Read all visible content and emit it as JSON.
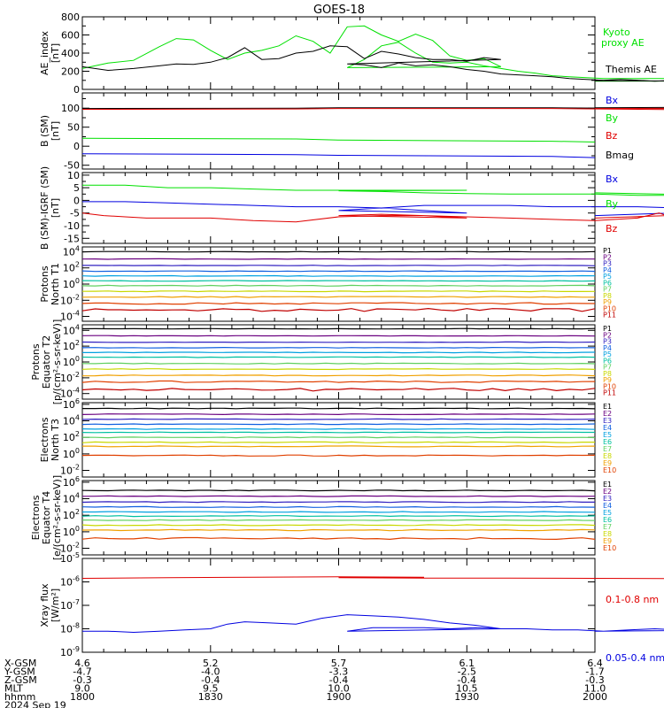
{
  "title": "GOES-18",
  "colors": {
    "axis": "#000000",
    "green": "#00e000",
    "blue": "#0000e0",
    "red": "#e00000",
    "black": "#000000"
  },
  "palette": {
    "protons": [
      "#000000",
      "#6a0080",
      "#3020c0",
      "#1060e0",
      "#00a0e0",
      "#00c0a0",
      "#60d060",
      "#c8d800",
      "#f0a000",
      "#e04000",
      "#c00000"
    ],
    "electrons": [
      "#000000",
      "#6a0080",
      "#3020c0",
      "#1060e0",
      "#00a0e0",
      "#00c0a0",
      "#60d060",
      "#c8d800",
      "#f0a000",
      "#e04000"
    ]
  },
  "chart_data": [
    {
      "type": "line",
      "id": "ae",
      "ylabel": [
        "AE_index",
        "[nT]"
      ],
      "scale": "linear",
      "ylim": [
        0,
        800
      ],
      "yticks": [
        0,
        200,
        400,
        600,
        800
      ],
      "series": [
        {
          "name": "Kyoto proxy AE",
          "color": "green",
          "x": [
            1800,
            1806,
            1812,
            1818,
            1822,
            1826,
            1830,
            1834,
            1838,
            1842,
            1846,
            1850,
            1854,
            1858,
            1862,
            1866,
            1870,
            1874,
            1878,
            1882,
            1886,
            1890,
            1894,
            1898,
            1902,
            1906,
            1910,
            1914,
            1918,
            1922,
            1926,
            1930,
            1934,
            1938,
            1942,
            1946,
            1950,
            1954,
            1958,
            1962,
            1966,
            1970,
            1974,
            1978,
            1982,
            1986,
            1990,
            1994,
            1998,
            2000
          ],
          "y": [
            230,
            290,
            320,
            470,
            560,
            545,
            430,
            330,
            400,
            430,
            480,
            590,
            530,
            400,
            690,
            700,
            600,
            530,
            610,
            540,
            370,
            320,
            340,
            250,
            240,
            330,
            480,
            520,
            400,
            300,
            290,
            300,
            260,
            230,
            200,
            180,
            150,
            140,
            130,
            120,
            120,
            120,
            120,
            120,
            120,
            110,
            100,
            100,
            95,
            90
          ]
        },
        {
          "name": "Themis AE",
          "color": "black",
          "x": [
            1800,
            1806,
            1812,
            1818,
            1822,
            1826,
            1830,
            1834,
            1838,
            1842,
            1846,
            1850,
            1854,
            1858,
            1862,
            1866,
            1870,
            1874,
            1878,
            1882,
            1886,
            1890,
            1894,
            1898,
            1902,
            1906,
            1910,
            1914,
            1918,
            1922,
            1926,
            1930,
            1934,
            1938,
            1942,
            1946,
            1950,
            1954,
            1958,
            1962,
            1966,
            1970,
            1974,
            1978,
            1982,
            1986,
            1990,
            1994,
            1998,
            2000
          ],
          "y": [
            250,
            210,
            230,
            260,
            280,
            275,
            300,
            350,
            460,
            330,
            340,
            400,
            420,
            480,
            470,
            340,
            420,
            390,
            350,
            330,
            330,
            310,
            350,
            330,
            280,
            270,
            240,
            290,
            260,
            270,
            250,
            220,
            200,
            170,
            160,
            150,
            140,
            120,
            110,
            100,
            110,
            100,
            90,
            100,
            90,
            90,
            80,
            85,
            90,
            95
          ]
        }
      ],
      "legend": [
        "Kyoto proxy AE",
        "Themis AE"
      ]
    },
    {
      "type": "line",
      "id": "bsm",
      "ylabel": [
        "B (SM)",
        "[nT]"
      ],
      "scale": "linear",
      "ylim": [
        -60,
        140
      ],
      "yticks": [
        -50,
        0,
        50,
        100
      ],
      "series": [
        {
          "name": "Bmag",
          "color": "black",
          "x": [
            1800,
            1850,
            1900,
            1950,
            1990,
            1995,
            2000
          ],
          "y": [
            99,
            100,
            101,
            101,
            98,
            103,
            101
          ]
        },
        {
          "name": "Bz",
          "color": "red",
          "x": [
            1800,
            1850,
            1900,
            1950,
            1990,
            1995,
            2000
          ],
          "y": [
            97,
            98,
            99,
            99,
            95,
            100,
            99
          ]
        },
        {
          "name": "By",
          "color": "green",
          "x": [
            1800,
            1850,
            1900,
            1950,
            2000
          ],
          "y": [
            21,
            19,
            16,
            13,
            11
          ]
        },
        {
          "name": "Bx",
          "color": "blue",
          "x": [
            1800,
            1850,
            1900,
            1950,
            2000
          ],
          "y": [
            -20,
            -22,
            -24,
            -27,
            -30
          ]
        }
      ],
      "legend": [
        "Bx",
        "By",
        "Bz",
        "Bmag"
      ]
    },
    {
      "type": "line",
      "id": "bigrf",
      "ylabel": [
        "B (SM)-IGRF (SM)",
        "[nT]"
      ],
      "scale": "linear",
      "ylim": [
        -17,
        11
      ],
      "yticks": [
        -15,
        -10,
        -5,
        0,
        5,
        10
      ],
      "series": [
        {
          "name": "By",
          "color": "green",
          "x": [
            1800,
            1810,
            1820,
            1830,
            1840,
            1850,
            1860,
            1870,
            1880,
            1890,
            1900,
            1910,
            1920,
            1930,
            1940,
            1950,
            1960,
            1970,
            1980,
            1990,
            2000
          ],
          "y": [
            6,
            6,
            5,
            5,
            4.5,
            4,
            4,
            4,
            4,
            4,
            3.8,
            3.5,
            3,
            2.7,
            2.5,
            2.5,
            2.5,
            2,
            2,
            2,
            3
          ]
        },
        {
          "name": "Bx",
          "color": "blue",
          "x": [
            1800,
            1810,
            1820,
            1830,
            1840,
            1850,
            1860,
            1870,
            1880,
            1890,
            1900,
            1910,
            1920,
            1930,
            1940,
            1950,
            1960,
            1970,
            1980,
            1985,
            1990,
            1995,
            2000
          ],
          "y": [
            -0.5,
            -0.5,
            -1,
            -1.5,
            -2,
            -2.5,
            -2.5,
            -3,
            -4,
            -5,
            -4,
            -3,
            -2,
            -2,
            -2,
            -2.5,
            -2.5,
            -2.5,
            -3,
            -1,
            -6,
            -4,
            -6
          ]
        },
        {
          "name": "Bz",
          "color": "red",
          "x": [
            1800,
            1805,
            1810,
            1815,
            1820,
            1830,
            1840,
            1850,
            1860,
            1870,
            1880,
            1890,
            1900,
            1910,
            1920,
            1930,
            1940,
            1950,
            1960,
            1970,
            1975,
            1980,
            1985,
            1990,
            1995,
            2000
          ],
          "y": [
            -5,
            -6,
            -6.5,
            -7,
            -7,
            -7,
            -8,
            -8.5,
            -6.5,
            -6,
            -6,
            -7,
            -6,
            -5.5,
            -6,
            -6.5,
            -7,
            -7.5,
            -8,
            -7,
            -5,
            -8,
            -7,
            -12,
            -5,
            -7
          ]
        }
      ],
      "legend": [
        "Bx",
        "By",
        "Bz"
      ]
    },
    {
      "type": "line",
      "id": "p_t1",
      "ylabel": [
        "Protons",
        "North T1"
      ],
      "scale": "log",
      "ylim": [
        -4.6,
        4.6
      ],
      "yticks": [
        -4,
        -2,
        0,
        2,
        4
      ],
      "levels": [
        4,
        3.1,
        2.3,
        1.6,
        1.0,
        0.4,
        -0.2,
        -0.9,
        -1.6,
        -2.4,
        -3.2
      ],
      "jitter": [
        0.03,
        0.03,
        0.03,
        0.04,
        0.04,
        0.04,
        0.05,
        0.05,
        0.06,
        0.1,
        0.18
      ],
      "legend": [
        "P1",
        "P2",
        "P3",
        "P4",
        "P5",
        "P6",
        "P7",
        "P8",
        "P9",
        "P10",
        "P11"
      ]
    },
    {
      "type": "line",
      "id": "p_t2",
      "ylabel": [
        "Protons",
        "Equator T2",
        "[p/(cm²-s-sr-keV)]"
      ],
      "scale": "log",
      "ylim": [
        -4.7,
        4.7
      ],
      "yticks": [
        -4,
        -2,
        0,
        2,
        4
      ],
      "levels": [
        4.2,
        3.3,
        2.5,
        1.8,
        1.2,
        0.6,
        -0.2,
        -0.9,
        -1.7,
        -2.5,
        -3.5
      ],
      "jitter": [
        0.03,
        0.03,
        0.03,
        0.04,
        0.04,
        0.04,
        0.05,
        0.05,
        0.06,
        0.1,
        0.18
      ],
      "legend": [
        "P1",
        "P2",
        "P3",
        "P4",
        "P5",
        "P6",
        "P7",
        "P8",
        "P9",
        "P10",
        "P11"
      ]
    },
    {
      "type": "line",
      "id": "e_t3",
      "ylabel": [
        "Electrons",
        "North T3"
      ],
      "scale": "log",
      "ylim": [
        -2.8,
        6.2
      ],
      "yticks": [
        -2,
        0,
        2,
        4,
        6
      ],
      "levels": [
        5.5,
        4.8,
        4.2,
        3.6,
        3.0,
        2.6,
        2.0,
        1.4,
        0.9,
        -0.2
      ],
      "jitter": [
        0.04,
        0.04,
        0.04,
        0.04,
        0.04,
        0.04,
        0.05,
        0.05,
        0.06,
        0.06
      ],
      "legend": [
        "E1",
        "E2",
        "E3",
        "E4",
        "E5",
        "E6",
        "E7",
        "E8",
        "E9",
        "E10"
      ]
    },
    {
      "type": "line",
      "id": "e_t4",
      "ylabel": [
        "Electrons",
        "Equator T4",
        "[e/(cm²-s-sr-keV)]"
      ],
      "scale": "log",
      "ylim": [
        -2.8,
        6.2
      ],
      "yticks": [
        -2,
        0,
        2,
        4,
        6
      ],
      "levels": [
        5.0,
        4.3,
        3.6,
        3.0,
        2.4,
        1.9,
        1.4,
        0.8,
        0.2,
        -0.8
      ],
      "jitter": [
        0.05,
        0.05,
        0.05,
        0.05,
        0.05,
        0.05,
        0.05,
        0.06,
        0.08,
        0.12
      ],
      "legend": [
        "E1",
        "E2",
        "E3",
        "E4",
        "E5",
        "E6",
        "E7",
        "E8",
        "E9",
        "E10"
      ]
    },
    {
      "type": "line",
      "id": "xray",
      "ylabel": [
        "Xray flux",
        "[W/m²]"
      ],
      "scale": "log",
      "ylim": [
        -9,
        -5
      ],
      "yticks": [
        -9,
        -8,
        -7,
        -6,
        -5
      ],
      "series": [
        {
          "name": "0.1-0.8 nm",
          "color": "red",
          "x": [
            1800,
            1820,
            1840,
            1860,
            1880,
            1900,
            1920,
            1940,
            1960,
            1980,
            2000
          ],
          "y": [
            -5.85,
            -5.82,
            -5.8,
            -5.78,
            -5.8,
            -5.82,
            -5.84,
            -5.84,
            -5.85,
            -5.86,
            -5.85
          ]
        },
        {
          "name": "0.05-0.4 nm",
          "color": "blue",
          "x": [
            1800,
            1806,
            1812,
            1818,
            1824,
            1830,
            1834,
            1838,
            1844,
            1850,
            1856,
            1862,
            1868,
            1874,
            1880,
            1886,
            1892,
            1898,
            1902,
            1908,
            1914,
            1920,
            1926,
            1932,
            1938,
            1944,
            1950,
            1956,
            1962,
            1968,
            1974,
            1980,
            1986,
            1992,
            1998,
            2000
          ],
          "y": [
            -8.1,
            -8.1,
            -8.15,
            -8.1,
            -8.05,
            -8.0,
            -7.8,
            -7.7,
            -7.75,
            -7.8,
            -7.55,
            -7.4,
            -7.45,
            -7.5,
            -7.6,
            -7.75,
            -7.85,
            -8.0,
            -8.1,
            -7.95,
            -7.95,
            -7.95,
            -8.0,
            -7.95,
            -8.0,
            -8.0,
            -8.05,
            -8.05,
            -8.1,
            -8.05,
            -8.0,
            -8.05,
            -8.05,
            -8.1,
            -8.05,
            -8.1
          ]
        }
      ],
      "legend": [
        "0.1-0.8 nm",
        "0.05-0.4 nm"
      ]
    }
  ],
  "xaxis": {
    "ticks": [
      1800,
      1830,
      1900,
      1930,
      2000
    ],
    "minor_step": 5,
    "rows": [
      {
        "label": "X-GSM",
        "values": [
          "4.6",
          "5.2",
          "5.7",
          "6.1",
          "6.4"
        ]
      },
      {
        "label": "Y-GSM",
        "values": [
          "-4.7",
          "-4.0",
          "-3.3",
          "-2.5",
          "-1.7"
        ]
      },
      {
        "label": "Z-GSM",
        "values": [
          "-0.3",
          "-0.4",
          "-0.4",
          "-0.4",
          "-0.3"
        ]
      },
      {
        "label": "MLT",
        "values": [
          "9.0",
          "9.5",
          "10.0",
          "10.5",
          "11.0"
        ]
      },
      {
        "label": "hhmm",
        "values": [
          "1800",
          "1830",
          "1900",
          "1930",
          "2000"
        ]
      }
    ],
    "date": "2024 Sep 19"
  }
}
